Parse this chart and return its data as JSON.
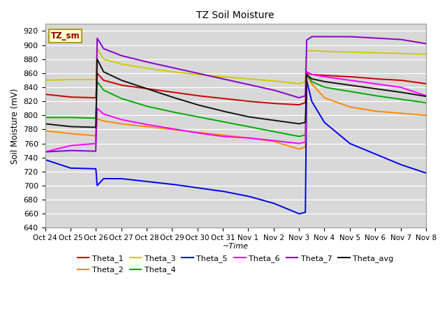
{
  "title": "TZ Soil Moisture",
  "xlabel": "~Time",
  "ylabel": "Soil Moisture (mV)",
  "ylim": [
    640,
    930
  ],
  "yticks": [
    640,
    660,
    680,
    700,
    720,
    740,
    760,
    780,
    800,
    820,
    840,
    860,
    880,
    900,
    920
  ],
  "bg_color": "#d8d8d8",
  "legend_box_label": "TZ_sm",
  "colors": {
    "Theta_1": "#cc0000",
    "Theta_2": "#ff8800",
    "Theta_3": "#cccc00",
    "Theta_4": "#00aa00",
    "Theta_5": "#0000ee",
    "Theta_6": "#ff00ff",
    "Theta_7": "#8800cc",
    "Theta_avg": "#111111"
  },
  "x_labels": [
    "Oct 24",
    "Oct 25",
    "Oct 26",
    "Oct 27",
    "Oct 28",
    "Oct 29",
    "Oct 30",
    "Oct 31",
    "Nov 1",
    "Nov 2",
    "Nov 3",
    "Nov 4",
    "Nov 5",
    "Nov 6",
    "Nov 7",
    "Nov 8"
  ],
  "figsize": [
    6.4,
    4.8
  ],
  "dpi": 100
}
